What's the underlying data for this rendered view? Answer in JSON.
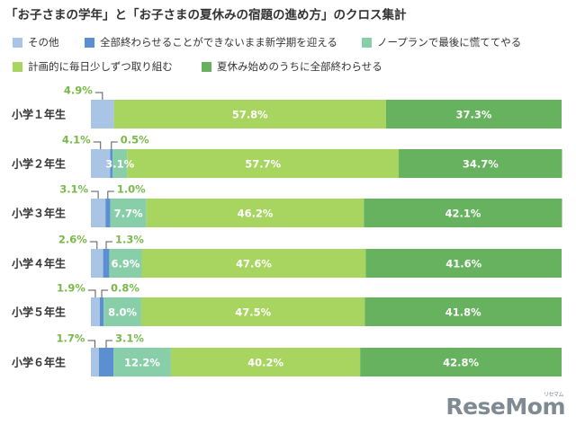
{
  "chart_data": {
    "type": "bar",
    "orientation": "horizontal",
    "stacked": true,
    "title": "「お子さまの学年」と「お子さまの夏休みの宿題の進め方」のクロス集計",
    "categories": [
      "小学１年生",
      "小学２年生",
      "小学３年生",
      "小学４年生",
      "小学５年生",
      "小学６年生"
    ],
    "series": [
      {
        "name": "その他",
        "color": "#a9c4e4",
        "values": [
          4.9,
          4.1,
          3.1,
          2.6,
          1.9,
          1.7
        ]
      },
      {
        "name": "全部終わらせることができないまま新学期を迎える",
        "color": "#5b8fd1",
        "values": [
          0.0,
          0.5,
          1.0,
          1.3,
          0.8,
          3.1
        ]
      },
      {
        "name": "ノープランで最後に慌ててやる",
        "color": "#88cfa9",
        "values": [
          0.0,
          3.1,
          7.7,
          6.9,
          8.0,
          12.2
        ]
      },
      {
        "name": "計画的に毎日少しずつ取り組む",
        "color": "#a8d460",
        "values": [
          57.8,
          57.7,
          46.2,
          47.6,
          47.5,
          40.2
        ]
      },
      {
        "name": "夏休み始めのうちに全部終わらせる",
        "color": "#67b25e",
        "values": [
          37.3,
          34.7,
          42.1,
          41.6,
          41.8,
          42.8
        ]
      }
    ],
    "labels": {
      "other": [
        "4.9%",
        "4.1%",
        "3.1%",
        "2.6%",
        "1.9%",
        "1.7%"
      ],
      "unfinished": [
        "",
        "0.5%",
        "1.0%",
        "1.3%",
        "0.8%",
        "3.1%"
      ],
      "noplan": [
        "",
        "3.1%",
        "7.7%",
        "6.9%",
        "8.0%",
        "12.2%"
      ],
      "planned": [
        "57.8%",
        "57.7%",
        "46.2%",
        "47.6%",
        "47.5%",
        "40.2%"
      ],
      "early": [
        "37.3%",
        "34.7%",
        "42.1%",
        "41.6%",
        "41.8%",
        "42.8%"
      ]
    },
    "xlim": [
      0,
      100
    ],
    "legend_position": "top",
    "grid": false
  },
  "watermark": "ReseMom",
  "watermark_sub": "リセマム",
  "colors": {
    "label_green": "#79b94a",
    "label_white": "#ffffff",
    "leader_line": "#555555"
  }
}
